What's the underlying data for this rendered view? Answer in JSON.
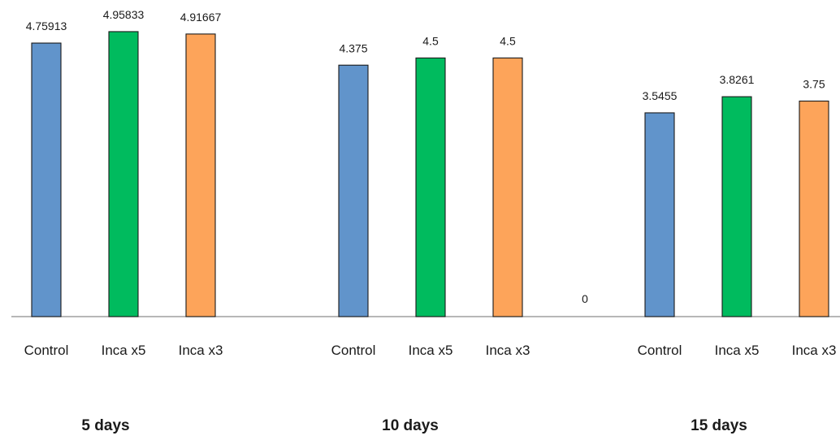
{
  "chart_data": {
    "type": "bar",
    "title": "",
    "xlabel": "",
    "ylabel": "",
    "ylim": [
      0,
      5.2
    ],
    "grid": false,
    "legend": "none",
    "groups": [
      {
        "label": "5 days",
        "bars": [
          {
            "category": "Control",
            "value": 4.75913,
            "value_label": "4.75913",
            "color": "#6194cb"
          },
          {
            "category": "Inca x5",
            "value": 4.95833,
            "value_label": "4.95833",
            "color": "#00bb5e"
          },
          {
            "category": "Inca x3",
            "value": 4.91667,
            "value_label": "4.91667",
            "color": "#fda45a"
          }
        ]
      },
      {
        "label": "10 days",
        "bars": [
          {
            "category": "Control",
            "value": 4.375,
            "value_label": "4.375",
            "color": "#6194cb"
          },
          {
            "category": "Inca x5",
            "value": 4.5,
            "value_label": "4.5",
            "color": "#00bb5e"
          },
          {
            "category": "Inca x3",
            "value": 4.5,
            "value_label": "4.5",
            "color": "#fda45a"
          },
          {
            "category": "",
            "value": 0,
            "value_label": "0",
            "color": "#6194cb"
          }
        ]
      },
      {
        "label": "15 days",
        "bars": [
          {
            "category": "Control",
            "value": 3.5455,
            "value_label": "3.5455",
            "color": "#6194cb"
          },
          {
            "category": "Inca x5",
            "value": 3.8261,
            "value_label": "3.8261",
            "color": "#00bb5e"
          },
          {
            "category": "Inca x3",
            "value": 3.75,
            "value_label": "3.75",
            "color": "#fda45a"
          }
        ]
      }
    ]
  }
}
